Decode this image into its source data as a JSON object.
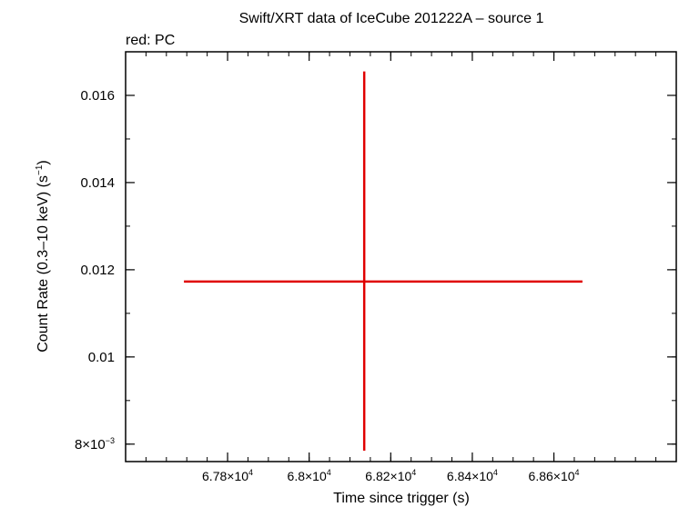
{
  "chart_data": {
    "type": "scatter",
    "title": "Swift/XRT data of IceCube 201222A – source 1",
    "subtitle": "red: PC",
    "xlabel": "Time since trigger (s)",
    "ylabel": "Count Rate (0.3–10 keV) (s",
    "ylabel_unit_exp": "−1",
    "ylabel_close": ")",
    "xlim": [
      67550,
      68900
    ],
    "ylim": [
      0.0076,
      0.017
    ],
    "x_ticks": [
      {
        "value": 67800,
        "mantissa": "6.78×10",
        "exp": "4"
      },
      {
        "value": 68000,
        "mantissa": "6.8×10",
        "exp": "4"
      },
      {
        "value": 68200,
        "mantissa": "6.82×10",
        "exp": "4"
      },
      {
        "value": 68400,
        "mantissa": "6.84×10",
        "exp": "4"
      },
      {
        "value": 68600,
        "mantissa": "6.86×10",
        "exp": "4"
      }
    ],
    "x_minor_step": 50,
    "y_ticks": [
      {
        "value": 0.008,
        "mantissa": "8×10",
        "exp": "−3"
      },
      {
        "value": 0.01,
        "mantissa": "0.01",
        "exp": ""
      },
      {
        "value": 0.012,
        "mantissa": "0.012",
        "exp": ""
      },
      {
        "value": 0.014,
        "mantissa": "0.014",
        "exp": ""
      },
      {
        "value": 0.016,
        "mantissa": "0.016",
        "exp": ""
      }
    ],
    "y_minor_step": 0.001,
    "series": [
      {
        "color": "#e00000",
        "points": [
          {
            "x": 68135,
            "x_err_low": 67693,
            "x_err_high": 68670,
            "y": 0.01173,
            "y_err_low": 0.00785,
            "y_err_high": 0.01655
          }
        ]
      }
    ]
  }
}
